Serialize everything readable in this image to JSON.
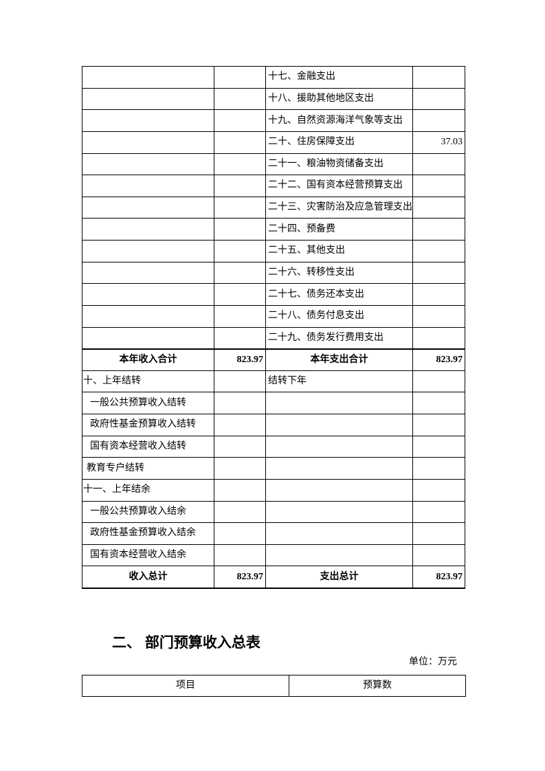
{
  "page": {
    "background_color": "#ffffff",
    "text_color": "#000000",
    "border_color": "#000000"
  },
  "budget_overview_table": {
    "columns": [
      "income_label",
      "income_value",
      "expense_label",
      "expense_value"
    ],
    "expense_only_rows": [
      {
        "income_label": "",
        "income_value": "",
        "expense_label": "十七、金融支出",
        "expense_value": ""
      },
      {
        "income_label": "",
        "income_value": "",
        "expense_label": "十八、援助其他地区支出",
        "expense_value": ""
      },
      {
        "income_label": "",
        "income_value": "",
        "expense_label": "十九、自然资源海洋气象等支出",
        "expense_value": ""
      },
      {
        "income_label": "",
        "income_value": "",
        "expense_label": "二十、住房保障支出",
        "expense_value": "37.03"
      },
      {
        "income_label": "",
        "income_value": "",
        "expense_label": "二十一、粮油物资储备支出",
        "expense_value": ""
      },
      {
        "income_label": "",
        "income_value": "",
        "expense_label": "二十二、国有资本经营预算支出",
        "expense_value": ""
      },
      {
        "income_label": "",
        "income_value": "",
        "expense_label": "二十三、灾害防治及应急管理支出",
        "expense_value": ""
      },
      {
        "income_label": "",
        "income_value": "",
        "expense_label": "二十四、预备费",
        "expense_value": ""
      },
      {
        "income_label": "",
        "income_value": "",
        "expense_label": "二十五、其他支出",
        "expense_value": ""
      },
      {
        "income_label": "",
        "income_value": "",
        "expense_label": "二十六、转移性支出",
        "expense_value": ""
      },
      {
        "income_label": "",
        "income_value": "",
        "expense_label": "二十七、债务还本支出",
        "expense_value": ""
      },
      {
        "income_label": "",
        "income_value": "",
        "expense_label": "二十八、债务付息支出",
        "expense_value": ""
      },
      {
        "income_label": "",
        "income_value": "",
        "expense_label": "二十九、债务发行费用支出",
        "expense_value": ""
      }
    ],
    "year_total_row": {
      "income_label": "本年收入合计",
      "income_value": "823.97",
      "expense_label": "本年支出合计",
      "expense_value": "823.97"
    },
    "carryover_rows": [
      {
        "income_label": "十、上年结转",
        "indent": 0,
        "income_value": "",
        "expense_label": "结转下年",
        "expense_value": ""
      },
      {
        "income_label": "一般公共预算收入结转",
        "indent": 1,
        "income_value": "",
        "expense_label": "",
        "expense_value": ""
      },
      {
        "income_label": "政府性基金预算收入结转",
        "indent": 1,
        "income_value": "",
        "expense_label": "",
        "expense_value": ""
      },
      {
        "income_label": "国有资本经营收入结转",
        "indent": 1,
        "income_value": "",
        "expense_label": "",
        "expense_value": ""
      },
      {
        "income_label": "教育专户结转",
        "indent": 0.5,
        "income_value": "",
        "expense_label": "",
        "expense_value": ""
      },
      {
        "income_label": "十一、上年结余",
        "indent": 0,
        "income_value": "",
        "expense_label": "",
        "expense_value": ""
      },
      {
        "income_label": "一般公共预算收入结余",
        "indent": 1,
        "income_value": "",
        "expense_label": "",
        "expense_value": ""
      },
      {
        "income_label": "政府性基金预算收入结余",
        "indent": 1,
        "income_value": "",
        "expense_label": "",
        "expense_value": ""
      },
      {
        "income_label": "国有资本经营收入结余",
        "indent": 1,
        "income_value": "",
        "expense_label": "",
        "expense_value": ""
      }
    ],
    "grand_total_row": {
      "income_label": "收入总计",
      "income_value": "823.97",
      "expense_label": "支出总计",
      "expense_value": "823.97"
    }
  },
  "income_section": {
    "heading": "二、 部门预算收入总表",
    "unit_note": "单位：万元",
    "table_header": {
      "item": "项目",
      "budget": "预算数"
    }
  }
}
